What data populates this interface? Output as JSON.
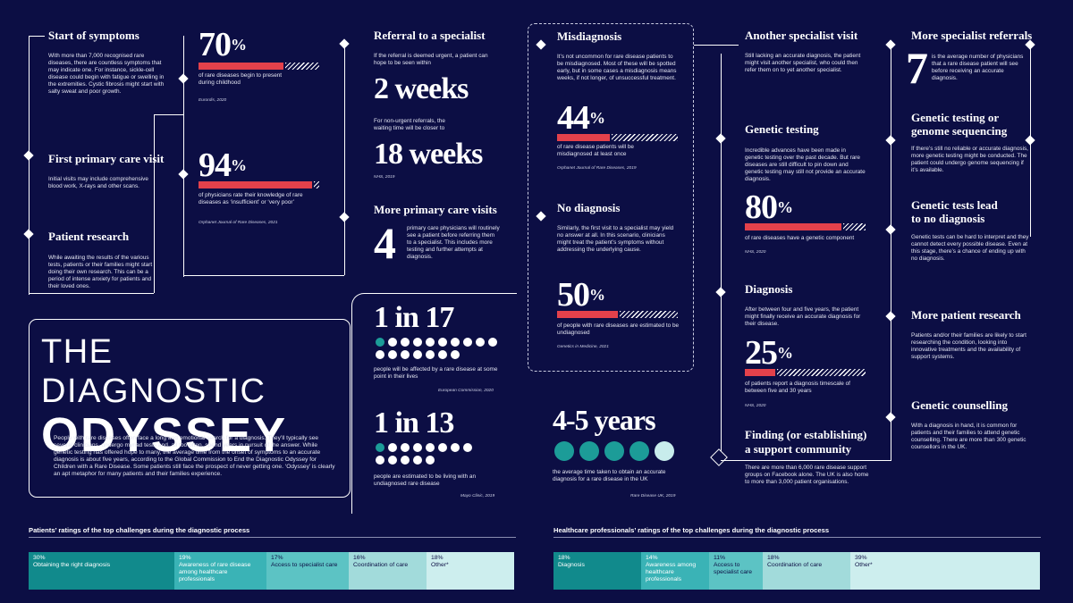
{
  "colors": {
    "background": "#0c0e44",
    "accent_red": "#e3414b",
    "teal_dark": "#118a8c",
    "teal_mid": "#3ab3b6",
    "teal_light": "#a2dbdb",
    "teal_pale": "#cdeeee"
  },
  "title": {
    "line1": "THE DIAGNOSTIC",
    "line2": "ODYSSEY",
    "intro": "People with rare diseases often face a long and emotional search for a diagnosis. They’ll typically see several clinicians, undergo myriad tests and, all too often, spend years in pursuit of the answer. While genetic testing has offered hope to many, the average time from the onset of symptoms to an accurate diagnosis is about five years, according to the Global Commission to End the Diagnostic Odyssey for Children with a Rare Disease. Some patients still face the prospect of never getting one. ‘Odyssey’ is clearly an apt metaphor for many patients and their families experience."
  },
  "steps": {
    "symptoms": {
      "title": "Start of symptoms",
      "text": "With more than 7,000 recognised rare diseases, there are countless symptoms that may indicate one. For instance, sickle-cell disease could begin with fatigue or swelling in the extremities. Cystic fibrosis might start with salty sweat and poor growth."
    },
    "primary": {
      "title": "First primary care visit",
      "text": "Initial visits may include comprehensive blood work, X-rays and other scans."
    },
    "research": {
      "title": "Patient research",
      "text": "While awaiting the results of the various tests, patients or their families might start doing their own research. This can be a period of intense anxiety for patients and their loved ones."
    },
    "referral": {
      "title": "Referral to a specialist",
      "text1": "If the referral is deemed urgent, a patient can hope to be seen within",
      "big1": "2 weeks",
      "text2": "For non-urgent referrals, the waiting time will be closer to",
      "big2": "18 weeks",
      "source": "NHS, 2019"
    },
    "more_primary": {
      "title": "More primary care visits",
      "big": "4",
      "text": "primary care physicians will routinely see a patient before referring them to a specialist. This includes more testing and further attempts at diagnosis."
    },
    "misdiagnosis": {
      "title": "Misdiagnosis",
      "text": "It’s not uncommon for rare disease patients to be misdiagnosed. Most of these will be spotted early, but in some cases a misdiagnosis means weeks, if not longer, of unsuccessful treatment."
    },
    "no_diagnosis": {
      "title": "No diagnosis",
      "text": "Similarly, the first visit to a specialist may yield no answer at all. In this scenario, clinicians might treat the patient’s symptoms without addressing the underlying cause."
    },
    "another": {
      "title": "Another specialist visit",
      "text": "Still lacking an accurate diagnosis, the patient might visit another specialist, who could then refer them on to yet another specialist."
    },
    "genetic_testing": {
      "title": "Genetic testing",
      "text": "Incredible advances have been made in genetic testing over the past decade. But rare diseases are still difficult to pin down and genetic testing may still not provide an accurate diagnosis."
    },
    "diagnosis": {
      "title": "Diagnosis",
      "text": "After between four and five years, the patient might finally receive an accurate diagnosis for their disease."
    },
    "support": {
      "title1": "Finding (or establishing)",
      "title2": "a support community",
      "text": "There are more than 6,000 rare disease support groups on Facebook alone. The UK is also home to more than 3,000 patient organisations."
    },
    "more_referrals": {
      "title": "More specialist referrals",
      "big": "7",
      "text": "is the average number of physicians that a rare disease patient will see before receiving an accurate diagnosis."
    },
    "genome": {
      "title1": "Genetic testing or",
      "title2": "genome sequencing",
      "text": "If there’s still no reliable or accurate diagnosis, more genetic testing might be conducted. The patient could undergo genome sequencing if it’s available."
    },
    "no_dx": {
      "title1": "Genetic tests lead",
      "title2": "to no diagnosis",
      "text": "Genetic tests can be hard to interpret and they cannot detect every possible disease. Even at this stage, there’s a chance of ending up with no diagnosis."
    },
    "more_research": {
      "title": "More patient research",
      "text": "Patients and/or their families are likely to start researching the condition, looking into innovative treatments and the availability of support systems."
    },
    "counselling": {
      "title": "Genetic counselling",
      "text": "With a diagnosis in hand, it is common for patients and their families to attend genetic counselling. There are more than 300 genetic counsellors in the UK."
    }
  },
  "stats": {
    "s70": {
      "num": "70",
      "pct": "%",
      "value": 70,
      "text": "of rare diseases begin to present during childhood",
      "source": "Eurordis, 2020"
    },
    "s94": {
      "num": "94",
      "pct": "%",
      "value": 94,
      "text": "of physicians rate their knowledge of rare diseases as ‘insufficient’ or ‘very poor’",
      "source": "Orphanet Journal of Rare Diseases, 2021"
    },
    "s44": {
      "num": "44",
      "pct": "%",
      "value": 44,
      "text": "of rare disease patients will be misdiagnosed at least once",
      "source": "Orphanet Journal of Rare Diseases, 2019"
    },
    "s50": {
      "num": "50",
      "pct": "%",
      "value": 50,
      "text": "of people with rare diseases are estimated to be undiagnosed",
      "source": "Genetics in Medicine, 2021"
    },
    "s80": {
      "num": "80",
      "pct": "%",
      "value": 80,
      "text": "of rare diseases have a genetic component",
      "source": "NHS, 2020"
    },
    "s25": {
      "num": "25",
      "pct": "%",
      "value": 25,
      "text": "of patients report a diagnosis timescale of between five and 30 years",
      "source": "NHS, 2020"
    },
    "r17": {
      "big": "1 in 17",
      "text": "people will be affected by a rare disease at some point in their lives",
      "source": "European Commission, 2020"
    },
    "r13": {
      "big": "1 in 13",
      "text": "people are estimated to be living with an undiagnosed rare disease",
      "source": "Mayo Clinic, 2019"
    },
    "years": {
      "big": "4-5 years",
      "text": "the average time taken to obtain an accurate diagnosis for a rare disease in the UK",
      "source": "Rare Disease UK, 2019"
    }
  },
  "chart_data": [
    {
      "type": "bar",
      "title": "Patients’ ratings of the top challenges during the diagnostic process",
      "categories": [
        "Obtaining the right diagnosis",
        "Awareness of rare disease among healthcare professionals",
        "Access to specialist care",
        "Coordination of care",
        "Other*"
      ],
      "values": [
        30,
        19,
        17,
        16,
        18
      ],
      "labels": [
        "30%",
        "19%",
        "17%",
        "16%",
        "18%"
      ]
    },
    {
      "type": "bar",
      "title": "Healthcare professionals’ ratings of the top challenges during the diagnostic process",
      "categories": [
        "Diagnosis",
        "Awareness among healthcare professionals",
        "Access to specialist care",
        "Coordination of care",
        "Other*"
      ],
      "values": [
        18,
        14,
        11,
        18,
        39
      ],
      "labels": [
        "18%",
        "14%",
        "11%",
        "18%",
        "39%"
      ]
    }
  ]
}
